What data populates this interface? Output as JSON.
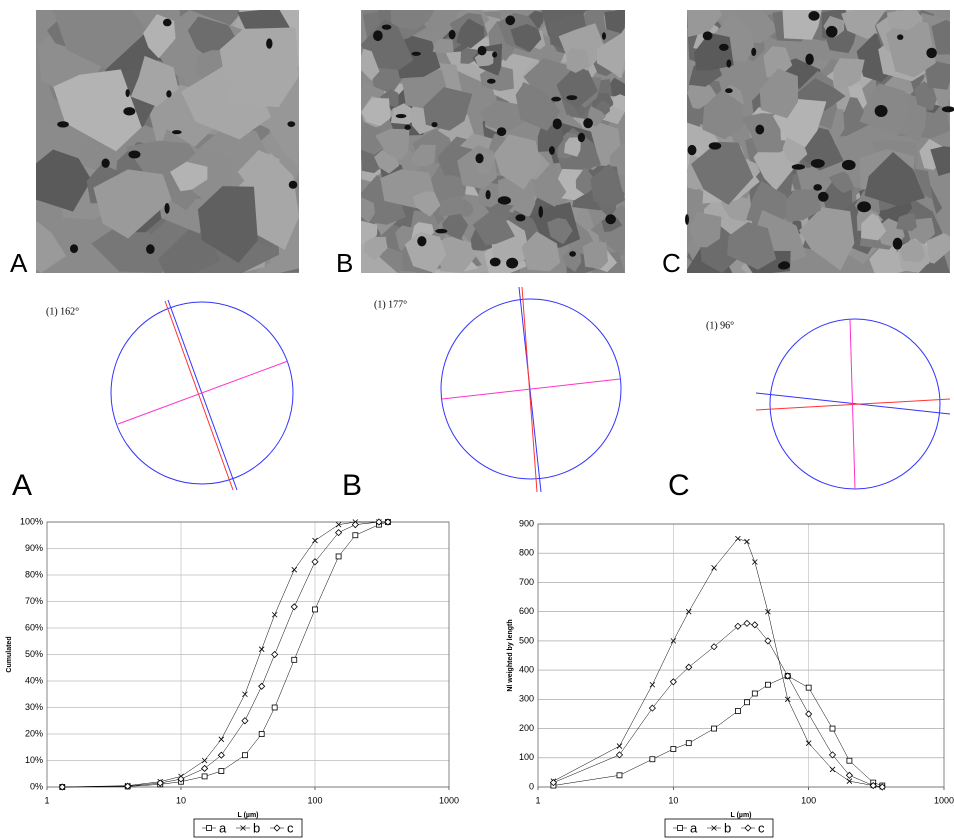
{
  "panels": [
    {
      "image_label": "A",
      "rose_text": "(1) 162°",
      "rose_label": "A"
    },
    {
      "image_label": "B",
      "rose_text": "(1) 177°",
      "rose_label": "B"
    },
    {
      "image_label": "C",
      "rose_text": "(1) 96°",
      "rose_label": "C"
    }
  ],
  "chart_data": [
    {
      "type": "line",
      "y_label": "Cumulated",
      "x_label": "L (µm)",
      "xscale": "log",
      "grid": true,
      "legend": "bottom",
      "xlim": [
        1,
        1000
      ],
      "xticks": [
        1,
        10,
        100,
        1000
      ],
      "ylim": [
        0,
        100
      ],
      "yticks": [
        {
          "value": 0,
          "label": "0%"
        },
        {
          "value": 10,
          "label": "10%"
        },
        {
          "value": 20,
          "label": "20%"
        },
        {
          "value": 30,
          "label": "30%"
        },
        {
          "value": 40,
          "label": "40%"
        },
        {
          "value": 50,
          "label": "50%"
        },
        {
          "value": 60,
          "label": "60%"
        },
        {
          "value": 70,
          "label": "70%"
        },
        {
          "value": 80,
          "label": "80%"
        },
        {
          "value": 90,
          "label": "90%"
        },
        {
          "value": 100,
          "label": "100%"
        }
      ],
      "x": [
        1.3,
        4,
        7,
        10,
        15,
        20,
        30,
        40,
        50,
        70,
        100,
        150,
        200,
        300,
        350
      ],
      "series": [
        {
          "name": "a",
          "color": "#000000",
          "marker": "square",
          "values": [
            0,
            0.2,
            1,
            2,
            4,
            6,
            12,
            20,
            30,
            48,
            67,
            87,
            95,
            99,
            100
          ]
        },
        {
          "name": "b",
          "color": "#000000",
          "marker": "cross",
          "values": [
            0,
            0.5,
            2,
            4,
            10,
            18,
            35,
            52,
            65,
            82,
            93,
            99,
            100,
            100,
            100
          ]
        },
        {
          "name": "c",
          "color": "#000000",
          "marker": "diamond",
          "values": [
            0,
            0.3,
            1.5,
            3,
            7,
            12,
            25,
            38,
            50,
            68,
            85,
            96,
            99,
            100,
            100
          ]
        }
      ]
    },
    {
      "type": "line",
      "y_label": "Nl weighted by length",
      "x_label": "L (µm)",
      "xscale": "log",
      "grid": true,
      "legend": "bottom",
      "xlim": [
        1,
        1000
      ],
      "xticks": [
        1,
        10,
        100,
        1000
      ],
      "ylim": [
        0,
        900
      ],
      "yticks": [
        0,
        100,
        200,
        300,
        400,
        500,
        600,
        700,
        800,
        900
      ],
      "x": [
        1.3,
        4,
        7,
        10,
        13,
        20,
        30,
        35,
        40,
        50,
        70,
        100,
        150,
        200,
        300,
        350
      ],
      "series": [
        {
          "name": "a",
          "color": "#000000",
          "marker": "square",
          "values": [
            5,
            40,
            95,
            130,
            150,
            200,
            260,
            290,
            320,
            350,
            380,
            340,
            200,
            90,
            15,
            5
          ]
        },
        {
          "name": "b",
          "color": "#000000",
          "marker": "cross",
          "values": [
            20,
            140,
            350,
            500,
            600,
            750,
            850,
            840,
            770,
            600,
            300,
            150,
            60,
            20,
            5,
            0
          ]
        },
        {
          "name": "c",
          "color": "#000000",
          "marker": "diamond",
          "values": [
            15,
            110,
            270,
            360,
            410,
            480,
            550,
            560,
            555,
            500,
            380,
            250,
            110,
            40,
            5,
            0
          ]
        }
      ]
    }
  ]
}
